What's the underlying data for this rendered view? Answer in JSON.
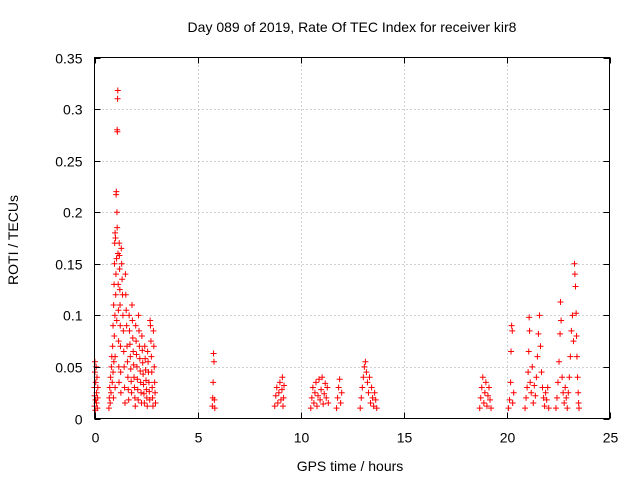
{
  "chart_data": {
    "type": "scatter",
    "title": "Day 089 of 2019, Rate Of TEC Index for receiver kir8",
    "xlabel": "GPS time / hours",
    "ylabel": "ROTI / TECUs",
    "xlim": [
      0,
      25
    ],
    "ylim": [
      0,
      0.35
    ],
    "xticks": [
      0,
      5,
      10,
      15,
      20,
      25
    ],
    "yticks": [
      0,
      0.05,
      0.1,
      0.15,
      0.2,
      0.25,
      0.3,
      0.35
    ],
    "xtick_labels": [
      "0",
      "5",
      "10",
      "15",
      "20",
      "25"
    ],
    "ytick_labels": [
      "0",
      "0.05",
      "0.1",
      "0.15",
      "0.2",
      "0.25",
      "0.3",
      "0.35"
    ],
    "grid": true,
    "marker": "plus",
    "color": "#ff0000",
    "series": [
      {
        "name": "ROTI",
        "points": [
          [
            0.0,
            0.012
          ],
          [
            0.0,
            0.022
          ],
          [
            0.0,
            0.03
          ],
          [
            0.02,
            0.045
          ],
          [
            0.02,
            0.055
          ],
          [
            0.04,
            0.008
          ],
          [
            0.05,
            0.018
          ],
          [
            0.06,
            0.035
          ],
          [
            0.08,
            0.05
          ],
          [
            0.1,
            0.015
          ],
          [
            0.1,
            0.025
          ],
          [
            0.12,
            0.04
          ],
          [
            0.14,
            0.01
          ],
          [
            0.15,
            0.02
          ],
          [
            0.16,
            0.03
          ],
          [
            0.7,
            0.01
          ],
          [
            0.72,
            0.02
          ],
          [
            0.74,
            0.03
          ],
          [
            0.76,
            0.015
          ],
          [
            0.78,
            0.04
          ],
          [
            0.8,
            0.025
          ],
          [
            0.82,
            0.05
          ],
          [
            0.84,
            0.06
          ],
          [
            0.86,
            0.035
          ],
          [
            0.88,
            0.07
          ],
          [
            0.9,
            0.045
          ],
          [
            0.9,
            0.09
          ],
          [
            0.92,
            0.02
          ],
          [
            0.93,
            0.11
          ],
          [
            0.94,
            0.055
          ],
          [
            0.95,
            0.13
          ],
          [
            0.96,
            0.08
          ],
          [
            0.97,
            0.15
          ],
          [
            0.98,
            0.17
          ],
          [
            0.99,
            0.1
          ],
          [
            1.0,
            0.18
          ],
          [
            1.0,
            0.06
          ],
          [
            1.0,
            0.03
          ],
          [
            1.02,
            0.175
          ],
          [
            1.03,
            0.12
          ],
          [
            1.04,
            0.14
          ],
          [
            1.05,
            0.217
          ],
          [
            1.06,
            0.22
          ],
          [
            1.07,
            0.155
          ],
          [
            1.08,
            0.095
          ],
          [
            1.09,
            0.2
          ],
          [
            1.1,
            0.185
          ],
          [
            1.1,
            0.28
          ],
          [
            1.11,
            0.278
          ],
          [
            1.12,
            0.31
          ],
          [
            1.13,
            0.318
          ],
          [
            1.14,
            0.16
          ],
          [
            1.15,
            0.13
          ],
          [
            1.16,
            0.105
          ],
          [
            1.17,
            0.075
          ],
          [
            1.18,
            0.05
          ],
          [
            1.19,
            0.035
          ],
          [
            1.2,
            0.17
          ],
          [
            1.21,
            0.158
          ],
          [
            1.22,
            0.145
          ],
          [
            1.23,
            0.125
          ],
          [
            1.24,
            0.11
          ],
          [
            1.25,
            0.09
          ],
          [
            1.26,
            0.07
          ],
          [
            1.27,
            0.045
          ],
          [
            1.28,
            0.025
          ],
          [
            1.3,
            0.165
          ],
          [
            1.32,
            0.15
          ],
          [
            1.34,
            0.135
          ],
          [
            1.36,
            0.12
          ],
          [
            1.38,
            0.1
          ],
          [
            1.4,
            0.085
          ],
          [
            1.42,
            0.065
          ],
          [
            1.44,
            0.05
          ],
          [
            1.46,
            0.03
          ],
          [
            1.48,
            0.015
          ],
          [
            1.5,
            0.14
          ],
          [
            1.52,
            0.12
          ],
          [
            1.54,
            0.105
          ],
          [
            1.56,
            0.09
          ],
          [
            1.58,
            0.07
          ],
          [
            1.6,
            0.055
          ],
          [
            1.62,
            0.04
          ],
          [
            1.64,
            0.028
          ],
          [
            1.66,
            0.018
          ],
          [
            1.68,
            0.1
          ],
          [
            1.7,
            0.085
          ],
          [
            1.72,
            0.072
          ],
          [
            1.74,
            0.06
          ],
          [
            1.76,
            0.048
          ],
          [
            1.78,
            0.036
          ],
          [
            1.8,
            0.025
          ],
          [
            1.82,
            0.11
          ],
          [
            1.84,
            0.095
          ],
          [
            1.86,
            0.078
          ],
          [
            1.88,
            0.065
          ],
          [
            1.9,
            0.052
          ],
          [
            1.92,
            0.04
          ],
          [
            1.94,
            0.03
          ],
          [
            1.96,
            0.02
          ],
          [
            1.98,
            0.012
          ],
          [
            2.0,
            0.09
          ],
          [
            2.02,
            0.075
          ],
          [
            2.04,
            0.062
          ],
          [
            2.06,
            0.05
          ],
          [
            2.08,
            0.038
          ],
          [
            2.1,
            0.028
          ],
          [
            2.12,
            0.018
          ],
          [
            2.14,
            0.1
          ],
          [
            2.16,
            0.085
          ],
          [
            2.18,
            0.07
          ],
          [
            2.2,
            0.058
          ],
          [
            2.22,
            0.046
          ],
          [
            2.24,
            0.035
          ],
          [
            2.26,
            0.025
          ],
          [
            2.28,
            0.015
          ],
          [
            2.3,
            0.08
          ],
          [
            2.32,
            0.066
          ],
          [
            2.34,
            0.054
          ],
          [
            2.36,
            0.043
          ],
          [
            2.38,
            0.033
          ],
          [
            2.4,
            0.024
          ],
          [
            2.42,
            0.015
          ],
          [
            2.44,
            0.07
          ],
          [
            2.46,
            0.058
          ],
          [
            2.48,
            0.047
          ],
          [
            2.5,
            0.037
          ],
          [
            2.52,
            0.028
          ],
          [
            2.54,
            0.02
          ],
          [
            2.56,
            0.012
          ],
          [
            2.58,
            0.065
          ],
          [
            2.6,
            0.055
          ],
          [
            2.62,
            0.045
          ],
          [
            2.64,
            0.035
          ],
          [
            2.66,
            0.026
          ],
          [
            2.68,
            0.018
          ],
          [
            2.7,
            0.095
          ],
          [
            2.72,
            0.09
          ],
          [
            2.74,
            0.075
          ],
          [
            2.76,
            0.06
          ],
          [
            2.78,
            0.045
          ],
          [
            2.8,
            0.03
          ],
          [
            2.82,
            0.02
          ],
          [
            2.84,
            0.012
          ],
          [
            2.86,
            0.085
          ],
          [
            2.88,
            0.07
          ],
          [
            2.9,
            0.05
          ],
          [
            2.92,
            0.035
          ],
          [
            2.94,
            0.025
          ],
          [
            2.96,
            0.015
          ],
          [
            5.72,
            0.012
          ],
          [
            5.74,
            0.02
          ],
          [
            5.76,
            0.035
          ],
          [
            5.78,
            0.063
          ],
          [
            5.8,
            0.055
          ],
          [
            5.82,
            0.018
          ],
          [
            5.84,
            0.01
          ],
          [
            8.75,
            0.012
          ],
          [
            8.8,
            0.022
          ],
          [
            8.85,
            0.03
          ],
          [
            8.9,
            0.015
          ],
          [
            8.95,
            0.025
          ],
          [
            9.0,
            0.035
          ],
          [
            9.05,
            0.018
          ],
          [
            9.1,
            0.028
          ],
          [
            9.12,
            0.04
          ],
          [
            9.15,
            0.012
          ],
          [
            9.18,
            0.02
          ],
          [
            9.2,
            0.032
          ],
          [
            10.5,
            0.01
          ],
          [
            10.55,
            0.02
          ],
          [
            10.6,
            0.03
          ],
          [
            10.65,
            0.015
          ],
          [
            10.7,
            0.025
          ],
          [
            10.75,
            0.035
          ],
          [
            10.8,
            0.012
          ],
          [
            10.85,
            0.022
          ],
          [
            10.9,
            0.038
          ],
          [
            10.95,
            0.018
          ],
          [
            11.0,
            0.028
          ],
          [
            11.05,
            0.04
          ],
          [
            11.1,
            0.014
          ],
          [
            11.15,
            0.024
          ],
          [
            11.2,
            0.034
          ],
          [
            11.25,
            0.02
          ],
          [
            11.3,
            0.03
          ],
          [
            11.35,
            0.015
          ],
          [
            11.75,
            0.01
          ],
          [
            11.8,
            0.02
          ],
          [
            11.85,
            0.03
          ],
          [
            11.9,
            0.038
          ],
          [
            11.95,
            0.015
          ],
          [
            12.0,
            0.025
          ],
          [
            12.9,
            0.01
          ],
          [
            12.95,
            0.02
          ],
          [
            13.0,
            0.03
          ],
          [
            13.05,
            0.04
          ],
          [
            13.1,
            0.05
          ],
          [
            13.15,
            0.055
          ],
          [
            13.2,
            0.045
          ],
          [
            13.25,
            0.035
          ],
          [
            13.3,
            0.025
          ],
          [
            13.35,
            0.04
          ],
          [
            13.4,
            0.015
          ],
          [
            13.45,
            0.03
          ],
          [
            13.5,
            0.02
          ],
          [
            13.55,
            0.012
          ],
          [
            13.6,
            0.025
          ],
          [
            13.65,
            0.018
          ],
          [
            13.7,
            0.01
          ],
          [
            18.7,
            0.01
          ],
          [
            18.75,
            0.02
          ],
          [
            18.8,
            0.03
          ],
          [
            18.85,
            0.04
          ],
          [
            18.9,
            0.015
          ],
          [
            18.95,
            0.025
          ],
          [
            19.0,
            0.035
          ],
          [
            19.05,
            0.012
          ],
          [
            19.1,
            0.022
          ],
          [
            19.15,
            0.03
          ],
          [
            19.2,
            0.018
          ],
          [
            19.25,
            0.01
          ],
          [
            20.1,
            0.01
          ],
          [
            20.15,
            0.018
          ],
          [
            20.2,
            0.035
          ],
          [
            20.22,
            0.065
          ],
          [
            20.25,
            0.09
          ],
          [
            20.28,
            0.085
          ],
          [
            20.3,
            0.015
          ],
          [
            20.35,
            0.025
          ],
          [
            20.9,
            0.01
          ],
          [
            20.95,
            0.02
          ],
          [
            21.0,
            0.03
          ],
          [
            21.05,
            0.045
          ],
          [
            21.08,
            0.065
          ],
          [
            21.1,
            0.098
          ],
          [
            21.12,
            0.085
          ],
          [
            21.15,
            0.035
          ],
          [
            21.2,
            0.025
          ],
          [
            21.25,
            0.05
          ],
          [
            21.3,
            0.015
          ],
          [
            21.35,
            0.032
          ],
          [
            21.4,
            0.022
          ],
          [
            21.45,
            0.04
          ],
          [
            21.5,
            0.06
          ],
          [
            21.55,
            0.082
          ],
          [
            21.6,
            0.1
          ],
          [
            21.65,
            0.07
          ],
          [
            21.7,
            0.045
          ],
          [
            21.75,
            0.03
          ],
          [
            21.8,
            0.02
          ],
          [
            21.85,
            0.012
          ],
          [
            21.9,
            0.025
          ],
          [
            21.95,
            0.018
          ],
          [
            22.0,
            0.03
          ],
          [
            22.05,
            0.01
          ],
          [
            22.4,
            0.01
          ],
          [
            22.45,
            0.02
          ],
          [
            22.5,
            0.035
          ],
          [
            22.55,
            0.055
          ],
          [
            22.6,
            0.082
          ],
          [
            22.62,
            0.113
          ],
          [
            22.65,
            0.095
          ],
          [
            22.7,
            0.04
          ],
          [
            22.75,
            0.025
          ],
          [
            22.8,
            0.015
          ],
          [
            22.85,
            0.03
          ],
          [
            22.9,
            0.02
          ],
          [
            22.95,
            0.01
          ],
          [
            23.0,
            0.025
          ],
          [
            23.05,
            0.04
          ],
          [
            23.1,
            0.06
          ],
          [
            23.15,
            0.085
          ],
          [
            23.2,
            0.1
          ],
          [
            23.25,
            0.075
          ],
          [
            23.3,
            0.15
          ],
          [
            23.32,
            0.14
          ],
          [
            23.35,
            0.128
          ],
          [
            23.38,
            0.102
          ],
          [
            23.4,
            0.08
          ],
          [
            23.42,
            0.06
          ],
          [
            23.45,
            0.04
          ],
          [
            23.48,
            0.025
          ],
          [
            23.5,
            0.015
          ],
          [
            23.52,
            0.01
          ]
        ]
      }
    ]
  }
}
